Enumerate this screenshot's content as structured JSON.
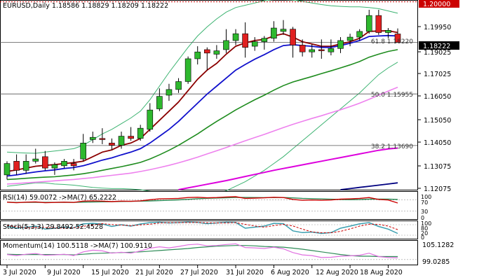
{
  "colors": {
    "bull": "#2eb82e",
    "bear": "#e02020",
    "wick": "#000000",
    "ema_red": "#8b0000",
    "ema_blue": "#1010cc",
    "ema_green": "#1e8c1e",
    "ema_violet": "#ee82ee",
    "ema_magenta": "#dd00dd",
    "ema_navy": "#000080",
    "bollinger": "#3cb371",
    "fib_line": "#555555",
    "rsi_line": "#cc0000",
    "rsi_ma": "#2e8b57",
    "stoch_k": "#3b9fb0",
    "stoch_d": "#cc0000",
    "mom_line": "#e070e0",
    "mom_ma": "#2e8b57"
  },
  "main": {
    "header": "EURUSD,Daily  1.18586 1.18829 1.18209 1.18222",
    "price_ticks": [
      "1.19950",
      "1.19025",
      "1.17025",
      "1.16050",
      "1.15050",
      "1.14050",
      "1.13075",
      "1.12075"
    ],
    "top_price_box": "1.20000",
    "current_price_box": "1.18222",
    "fib_levels": [
      "61.8 1.18220",
      "50.0 1.15955",
      "38.2 1.13690"
    ]
  },
  "rsi": {
    "header": "RSI(14) 59.0072  ->MA(7) 65.2222",
    "ticks": [
      "100",
      "70",
      "30",
      "0"
    ]
  },
  "stoch": {
    "header": "Stoch(5,3,3) 29.8492 52.4528",
    "ticks": [
      "100",
      "80",
      "20",
      "0"
    ]
  },
  "momentum": {
    "header": "Momentum(14) 100.5118  ->MA(7) 100.9110",
    "ticks": [
      "105.1282",
      "99.0285"
    ]
  },
  "date_labels": [
    "3 Jul 2020",
    "9 Jul 2020",
    "15 Jul 2020",
    "21 Jul 2020",
    "27 Jul 2020",
    "31 Jul 2020",
    "6 Aug 2020",
    "12 Aug 2020",
    "18 Aug 2020"
  ],
  "chart_data": {
    "type": "candlestick",
    "symbol": "EURUSD",
    "timeframe": "Daily",
    "ylim": [
      1.1175,
      1.2005
    ],
    "candles": [
      {
        "o": 1.124,
        "h": 1.13,
        "l": 1.122,
        "c": 1.129
      },
      {
        "o": 1.13,
        "h": 1.133,
        "l": 1.124,
        "c": 1.126
      },
      {
        "o": 1.126,
        "h": 1.133,
        "l": 1.1245,
        "c": 1.13
      },
      {
        "o": 1.13,
        "h": 1.1355,
        "l": 1.129,
        "c": 1.131
      },
      {
        "o": 1.132,
        "h": 1.1345,
        "l": 1.126,
        "c": 1.127
      },
      {
        "o": 1.127,
        "h": 1.1295,
        "l": 1.124,
        "c": 1.1285
      },
      {
        "o": 1.128,
        "h": 1.131,
        "l": 1.127,
        "c": 1.13
      },
      {
        "o": 1.129,
        "h": 1.131,
        "l": 1.126,
        "c": 1.128
      },
      {
        "o": 1.131,
        "h": 1.142,
        "l": 1.13,
        "c": 1.138
      },
      {
        "o": 1.1395,
        "h": 1.143,
        "l": 1.138,
        "c": 1.1405
      },
      {
        "o": 1.14,
        "h": 1.1445,
        "l": 1.1375,
        "c": 1.1395
      },
      {
        "o": 1.138,
        "h": 1.14,
        "l": 1.135,
        "c": 1.137
      },
      {
        "o": 1.137,
        "h": 1.143,
        "l": 1.1355,
        "c": 1.141
      },
      {
        "o": 1.141,
        "h": 1.145,
        "l": 1.139,
        "c": 1.14
      },
      {
        "o": 1.14,
        "h": 1.146,
        "l": 1.139,
        "c": 1.1445
      },
      {
        "o": 1.144,
        "h": 1.1555,
        "l": 1.143,
        "c": 1.1525
      },
      {
        "o": 1.153,
        "h": 1.162,
        "l": 1.152,
        "c": 1.1585
      },
      {
        "o": 1.159,
        "h": 1.164,
        "l": 1.1565,
        "c": 1.1615
      },
      {
        "o": 1.1615,
        "h": 1.1665,
        "l": 1.16,
        "c": 1.165
      },
      {
        "o": 1.165,
        "h": 1.176,
        "l": 1.164,
        "c": 1.175
      },
      {
        "o": 1.175,
        "h": 1.1805,
        "l": 1.1725,
        "c": 1.178
      },
      {
        "o": 1.179,
        "h": 1.18,
        "l": 1.17,
        "c": 1.1775
      },
      {
        "o": 1.177,
        "h": 1.181,
        "l": 1.175,
        "c": 1.1785
      },
      {
        "o": 1.179,
        "h": 1.188,
        "l": 1.1775,
        "c": 1.183
      },
      {
        "o": 1.183,
        "h": 1.188,
        "l": 1.181,
        "c": 1.186
      },
      {
        "o": 1.186,
        "h": 1.191,
        "l": 1.1755,
        "c": 1.18
      },
      {
        "o": 1.1805,
        "h": 1.1845,
        "l": 1.1785,
        "c": 1.1825
      },
      {
        "o": 1.1825,
        "h": 1.185,
        "l": 1.179,
        "c": 1.184
      },
      {
        "o": 1.184,
        "h": 1.1915,
        "l": 1.1825,
        "c": 1.1885
      },
      {
        "o": 1.187,
        "h": 1.192,
        "l": 1.1855,
        "c": 1.188
      },
      {
        "o": 1.188,
        "h": 1.189,
        "l": 1.1755,
        "c": 1.181
      },
      {
        "o": 1.181,
        "h": 1.1835,
        "l": 1.176,
        "c": 1.178
      },
      {
        "o": 1.178,
        "h": 1.1815,
        "l": 1.1755,
        "c": 1.179
      },
      {
        "o": 1.179,
        "h": 1.1835,
        "l": 1.175,
        "c": 1.1785
      },
      {
        "o": 1.178,
        "h": 1.1835,
        "l": 1.1765,
        "c": 1.1795
      },
      {
        "o": 1.1795,
        "h": 1.1845,
        "l": 1.1775,
        "c": 1.183
      },
      {
        "o": 1.183,
        "h": 1.186,
        "l": 1.1805,
        "c": 1.1845
      },
      {
        "o": 1.1845,
        "h": 1.188,
        "l": 1.183,
        "c": 1.187
      },
      {
        "o": 1.187,
        "h": 1.1965,
        "l": 1.186,
        "c": 1.194
      },
      {
        "o": 1.194,
        "h": 1.1965,
        "l": 1.1855,
        "c": 1.1865
      },
      {
        "o": 1.1865,
        "h": 1.1885,
        "l": 1.184,
        "c": 1.1875
      },
      {
        "o": 1.1859,
        "h": 1.1883,
        "l": 1.1821,
        "c": 1.1822
      }
    ],
    "overlays": [
      {
        "name": "ema_red",
        "values": [
          1.1255,
          1.1262,
          1.127,
          1.1278,
          1.1282,
          1.1285,
          1.129,
          1.1294,
          1.13,
          1.132,
          1.134,
          1.135,
          1.137,
          1.138,
          1.14,
          1.144,
          1.148,
          1.152,
          1.156,
          1.161,
          1.166,
          1.17,
          1.173,
          1.177,
          1.1805,
          1.182,
          1.183,
          1.1835,
          1.185,
          1.186,
          1.1845,
          1.1825,
          1.1815,
          1.1805,
          1.1805,
          1.1815,
          1.1825,
          1.184,
          1.187,
          1.1872,
          1.1873,
          1.1865
        ]
      },
      {
        "name": "ema_blue",
        "values": [
          1.1235,
          1.124,
          1.1247,
          1.1253,
          1.1258,
          1.1262,
          1.1268,
          1.1272,
          1.128,
          1.1292,
          1.1305,
          1.1315,
          1.1328,
          1.134,
          1.1355,
          1.138,
          1.141,
          1.144,
          1.1475,
          1.1515,
          1.1555,
          1.1595,
          1.163,
          1.1665,
          1.17,
          1.1725,
          1.1748,
          1.1768,
          1.179,
          1.1808,
          1.1812,
          1.1808,
          1.1805,
          1.18,
          1.18,
          1.1808,
          1.1818,
          1.183,
          1.1848,
          1.185,
          1.1852,
          1.185
        ]
      },
      {
        "name": "ema_green",
        "values": [
          1.122,
          1.1222,
          1.1225,
          1.1228,
          1.123,
          1.1232,
          1.1236,
          1.124,
          1.1245,
          1.1252,
          1.126,
          1.1268,
          1.1276,
          1.1285,
          1.1295,
          1.131,
          1.1328,
          1.1348,
          1.137,
          1.1395,
          1.142,
          1.1448,
          1.1475,
          1.15,
          1.1525,
          1.1548,
          1.157,
          1.159,
          1.1612,
          1.1632,
          1.1648,
          1.166,
          1.1672,
          1.1685,
          1.1697,
          1.171,
          1.1723,
          1.1738,
          1.1757,
          1.177,
          1.1782,
          1.179
        ]
      },
      {
        "name": "ema_violet",
        "values": [
          1.12,
          1.1202,
          1.1205,
          1.1208,
          1.1211,
          1.1214,
          1.1217,
          1.122,
          1.1224,
          1.1228,
          1.1233,
          1.1238,
          1.1243,
          1.1248,
          1.1255,
          1.1263,
          1.1272,
          1.1282,
          1.1293,
          1.1305,
          1.1318,
          1.1332,
          1.1346,
          1.136,
          1.1375,
          1.139,
          1.1404,
          1.1418,
          1.1433,
          1.1448,
          1.1462,
          1.1475,
          1.1488,
          1.15,
          1.1513,
          1.1526,
          1.154,
          1.1555,
          1.1572,
          1.159,
          1.1608,
          1.1625
        ]
      },
      {
        "name": "ema_magenta",
        "values": [
          null,
          null,
          null,
          null,
          null,
          null,
          null,
          null,
          null,
          null,
          null,
          null,
          null,
          null,
          null,
          null,
          null,
          null,
          1.1175,
          1.1183,
          1.1191,
          1.1199,
          1.1207,
          1.1215,
          1.1224,
          1.1233,
          1.1242,
          1.1251,
          1.126,
          1.1268,
          1.1276,
          1.1284,
          1.1292,
          1.13,
          1.1308,
          1.1316,
          1.1324,
          1.1332,
          1.134,
          1.1348,
          1.1354,
          1.1358
        ]
      },
      {
        "name": "ema_navy",
        "values": [
          null,
          null,
          null,
          null,
          null,
          null,
          null,
          null,
          null,
          null,
          null,
          null,
          null,
          null,
          null,
          null,
          null,
          null,
          null,
          null,
          null,
          null,
          null,
          null,
          null,
          null,
          null,
          null,
          null,
          null,
          null,
          null,
          null,
          null,
          null,
          1.1175,
          1.118,
          1.1185,
          1.119,
          1.1195,
          1.12,
          1.1205
        ]
      }
    ],
    "bollinger": {
      "upper": [
        1.134,
        1.1338,
        1.1336,
        1.1335,
        1.134,
        1.1345,
        1.135,
        1.1355,
        1.137,
        1.1395,
        1.142,
        1.144,
        1.1465,
        1.149,
        1.152,
        1.157,
        1.163,
        1.169,
        1.1745,
        1.18,
        1.185,
        1.189,
        1.1925,
        1.1955,
        1.1975,
        1.1985,
        1.1995,
        1.2005,
        1.201,
        1.201,
        1.2008,
        1.2002,
        1.1995,
        1.1988,
        1.1983,
        1.198,
        1.1978,
        1.1978,
        1.1975,
        1.197,
        1.196,
        1.195
      ],
      "lower": [
        1.119,
        1.1195,
        1.12,
        1.1205,
        1.1205,
        1.12,
        1.1198,
        1.1195,
        1.119,
        1.1185,
        1.1182,
        1.118,
        1.118,
        1.1178,
        1.1175,
        1.1168,
        1.116,
        1.115,
        1.1145,
        1.114,
        1.114,
        1.1145,
        1.1155,
        1.117,
        1.119,
        1.121,
        1.1235,
        1.126,
        1.129,
        1.132,
        1.1355,
        1.139,
        1.1425,
        1.146,
        1.1495,
        1.153,
        1.1565,
        1.16,
        1.164,
        1.168,
        1.171,
        1.1735
      ]
    },
    "fibonacci": [
      {
        "level": "61.8",
        "price": 1.1822
      },
      {
        "level": "50.0",
        "price": 1.15955
      },
      {
        "level": "38.2",
        "price": 1.1369
      }
    ],
    "rsi": {
      "last": 59.0072,
      "ma_last": 65.2222,
      "ylim": [
        0,
        100
      ],
      "values": [
        62,
        60,
        62,
        63,
        60,
        61,
        62,
        61,
        66,
        67,
        66,
        64,
        66,
        65,
        67,
        71,
        74,
        75,
        76,
        79,
        80,
        78,
        79,
        81,
        82,
        76,
        77,
        78,
        80,
        79,
        72,
        69,
        70,
        69,
        70,
        73,
        74,
        76,
        79,
        72,
        70,
        59
      ]
    },
    "stochastic": {
      "k_last": 29.8492,
      "d_last": 52.4528,
      "ylim": [
        0,
        100
      ],
      "k": [
        70,
        60,
        65,
        72,
        55,
        60,
        66,
        62,
        85,
        88,
        84,
        70,
        80,
        72,
        84,
        92,
        94,
        90,
        92,
        95,
        93,
        86,
        90,
        94,
        93,
        60,
        66,
        72,
        88,
        86,
        45,
        35,
        38,
        30,
        35,
        60,
        72,
        85,
        92,
        70,
        55,
        30
      ],
      "d": [
        75,
        68,
        62,
        66,
        64,
        62,
        60,
        63,
        71,
        78,
        86,
        81,
        78,
        74,
        79,
        83,
        90,
        92,
        92,
        92,
        93,
        91,
        90,
        90,
        92,
        82,
        73,
        66,
        75,
        82,
        73,
        55,
        39,
        34,
        34,
        42,
        56,
        72,
        83,
        82,
        72,
        52
      ]
    },
    "momentum": {
      "last": 100.5118,
      "ma_last": 100.911,
      "ylim": [
        98.5,
        105.6
      ],
      "values": [
        101.5,
        101.2,
        101.6,
        101.8,
        101.3,
        101.4,
        101.6,
        101.2,
        102.3,
        102.8,
        102.6,
        101.9,
        102.2,
        101.9,
        102.6,
        103.4,
        103.8,
        103.5,
        103.9,
        104.4,
        104.6,
        104.1,
        104.2,
        104.5,
        104.7,
        103.6,
        103.5,
        103.3,
        103.7,
        103.2,
        102.1,
        101.4,
        101.2,
        100.6,
        100.7,
        101.0,
        101.1,
        101.3,
        101.9,
        100.9,
        100.6,
        100.5
      ],
      "ma": [
        101.6,
        101.5,
        101.5,
        101.5,
        101.5,
        101.5,
        101.5,
        101.4,
        101.6,
        101.8,
        101.9,
        102.0,
        102.1,
        102.2,
        102.3,
        102.5,
        102.7,
        102.9,
        103.1,
        103.3,
        103.6,
        103.8,
        104.0,
        104.1,
        104.2,
        104.2,
        104.1,
        103.9,
        103.8,
        103.7,
        103.4,
        103.1,
        102.7,
        102.3,
        101.9,
        101.5,
        101.2,
        101.0,
        101.0,
        100.9,
        100.9,
        100.9
      ]
    }
  }
}
